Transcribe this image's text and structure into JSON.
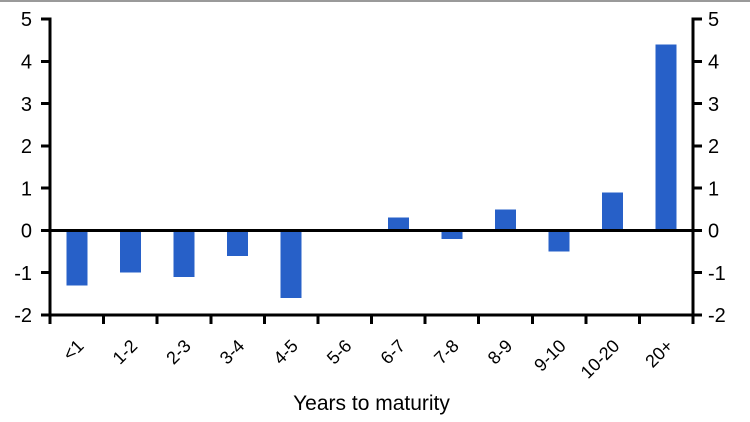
{
  "page": {
    "background": "#ffffff",
    "top_divider_color": "#9a9a9a"
  },
  "chart_data": {
    "type": "bar",
    "title": "",
    "xlabel": "Years to maturity",
    "ylabel": "",
    "categories": [
      "<1",
      "1-2",
      "2-3",
      "3-4",
      "4-5",
      "5-6",
      "6-7",
      "7-8",
      "8-9",
      "9-10",
      "10-20",
      "20+"
    ],
    "values": [
      -1.3,
      -1.0,
      -1.1,
      -0.6,
      -1.6,
      0,
      0.3,
      -0.2,
      0.5,
      -0.5,
      0.9,
      4.4
    ],
    "ylim": [
      -2,
      5
    ],
    "yticks": [
      -2,
      -1,
      0,
      1,
      2,
      3,
      4,
      5
    ],
    "dual_y_axis": true,
    "grid": false,
    "legend": "none",
    "bar_color": "#2760C8",
    "axis_color": "#000000",
    "x_tick_rotation_deg": -45
  }
}
